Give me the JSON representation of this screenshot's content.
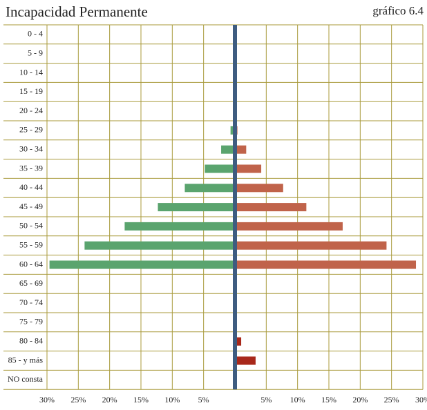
{
  "chart_data": {
    "type": "pyramid",
    "title": "Incapacidad Permanente",
    "subtitle": "gráfico 6.4",
    "categories": [
      "0 - 4",
      "5 - 9",
      "10 - 14",
      "15 - 19",
      "20 - 24",
      "25 - 29",
      "30 - 34",
      "35 - 39",
      "40 - 44",
      "45 - 49",
      "50 - 54",
      "55 - 59",
      "60 - 64",
      "65 - 69",
      "70 - 74",
      "75 - 79",
      "80 - 84",
      "85 - y más",
      "NO consta"
    ],
    "series": [
      {
        "side": "left",
        "color": "#5aa46e",
        "values": [
          null,
          null,
          null,
          null,
          null,
          0.7,
          2.2,
          4.8,
          8.0,
          12.3,
          17.6,
          24.0,
          29.6,
          null,
          null,
          null,
          null,
          null,
          null
        ]
      },
      {
        "side": "right",
        "color": "#c0634a",
        "values": [
          null,
          null,
          null,
          null,
          null,
          0.4,
          1.8,
          4.2,
          7.7,
          11.4,
          17.2,
          24.2,
          28.9,
          null,
          null,
          null,
          null,
          null,
          null
        ]
      },
      {
        "side": "right",
        "color": "#a8281a",
        "values": [
          null,
          null,
          null,
          null,
          null,
          null,
          null,
          null,
          null,
          null,
          null,
          null,
          null,
          null,
          null,
          null,
          1.0,
          3.3,
          null
        ]
      }
    ],
    "xlim": [
      0,
      30
    ],
    "xticks_left": [
      {
        "value": 30,
        "label": "30%"
      },
      {
        "value": 25,
        "label": "25%"
      },
      {
        "value": 20,
        "label": "20%"
      },
      {
        "value": 15,
        "label": "15%"
      },
      {
        "value": 10,
        "label": "10%"
      },
      {
        "value": 5,
        "label": "5%"
      }
    ],
    "xticks_right": [
      {
        "value": 5,
        "label": "5%"
      },
      {
        "value": 10,
        "label": "10%"
      },
      {
        "value": 15,
        "label": "15%"
      },
      {
        "value": 20,
        "label": "20%"
      },
      {
        "value": 25,
        "label": "25%"
      },
      {
        "value": 30,
        "label": "30%"
      }
    ],
    "grid": true,
    "grid_color": "#a89a3a",
    "axis_color": "#3e5c80"
  }
}
